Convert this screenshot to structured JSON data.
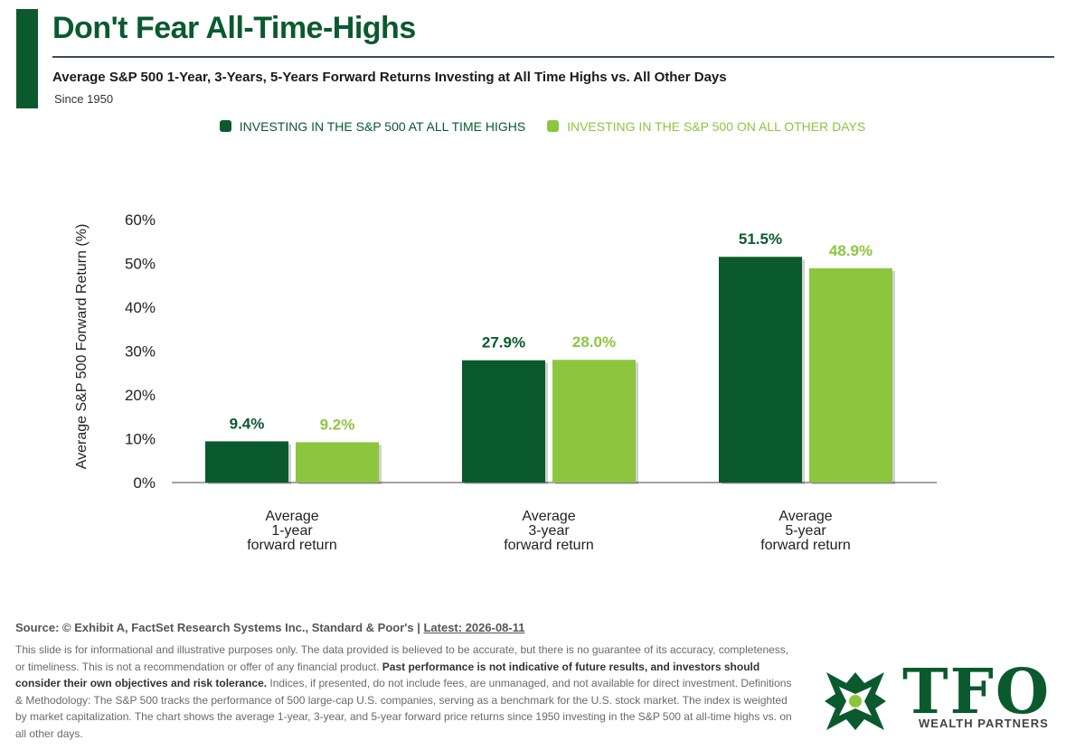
{
  "header": {
    "title": "Don't Fear All-Time-Highs",
    "subtitle": "Average S&P 500 1-Year, 3-Years, 5-Years Forward Returns Investing at All Time Highs vs. All Other Days",
    "since": "Since 1950"
  },
  "colors": {
    "dark_green": "#0a5a2e",
    "light_green": "#8cc63f"
  },
  "chart_data": {
    "type": "bar",
    "title": "Don't Fear All-Time-Highs",
    "subtitle": "Average S&P 500 1-Year, 3-Years, 5-Years Forward Returns Investing at All Time Highs vs. All Other Days",
    "ylabel": "Average S&P 500 Forward Return (%)",
    "xlabel": "",
    "categories": [
      [
        "Average",
        "1-year",
        "forward return"
      ],
      [
        "Average",
        "3-year",
        "forward return"
      ],
      [
        "Average",
        "5-year",
        "forward return"
      ]
    ],
    "series": [
      {
        "name": "INVESTING IN THE S&P 500 AT ALL TIME HIGHS",
        "color": "#0a5a2e",
        "values": [
          9.4,
          27.9,
          51.5
        ],
        "labels": [
          "9.4%",
          "27.9%",
          "51.5%"
        ]
      },
      {
        "name": "INVESTING IN THE S&P 500 ON ALL OTHER DAYS",
        "color": "#8cc63f",
        "values": [
          9.2,
          28.0,
          48.9
        ],
        "labels": [
          "9.2%",
          "28.0%",
          "48.9%"
        ]
      }
    ],
    "ylim": [
      0,
      60
    ],
    "yticks": [
      0,
      10,
      20,
      30,
      40,
      50,
      60
    ],
    "ytick_labels": [
      "0%",
      "10%",
      "20%",
      "30%",
      "40%",
      "50%",
      "60%"
    ],
    "grid": false,
    "legend_position": "top-center"
  },
  "footer": {
    "source": "Source: © Exhibit A, FactSet Research Systems Inc., Standard & Poor's | ",
    "latest": "Latest: 2026-08-11",
    "disclaimer_1": "This slide is for informational and illustrative purposes only. The data provided is believed to be accurate, but there is no guarantee of its accuracy, completeness, or timeliness. This is not a recommendation or offer of any financial product. ",
    "disclaimer_bold": "Past performance is not indicative of future results, and investors should consider their own objectives and risk tolerance.",
    "disclaimer_2": " Indices, if presented, do not include fees, are unmanaged, and not available for direct investment. Definitions & Methodology: The S&P 500 tracks the performance of 500 large-cap U.S. companies, serving as a benchmark for the U.S. stock market. The index is weighted by market capitalization. The chart shows the average 1-year, 3-year, and 5-year forward price returns since 1950 investing in the S&P 500 at all-time highs vs. on all other days."
  },
  "logo": {
    "text": "TFO",
    "subtext": "WEALTH PARTNERS",
    "icon": "tfo-star-icon"
  }
}
